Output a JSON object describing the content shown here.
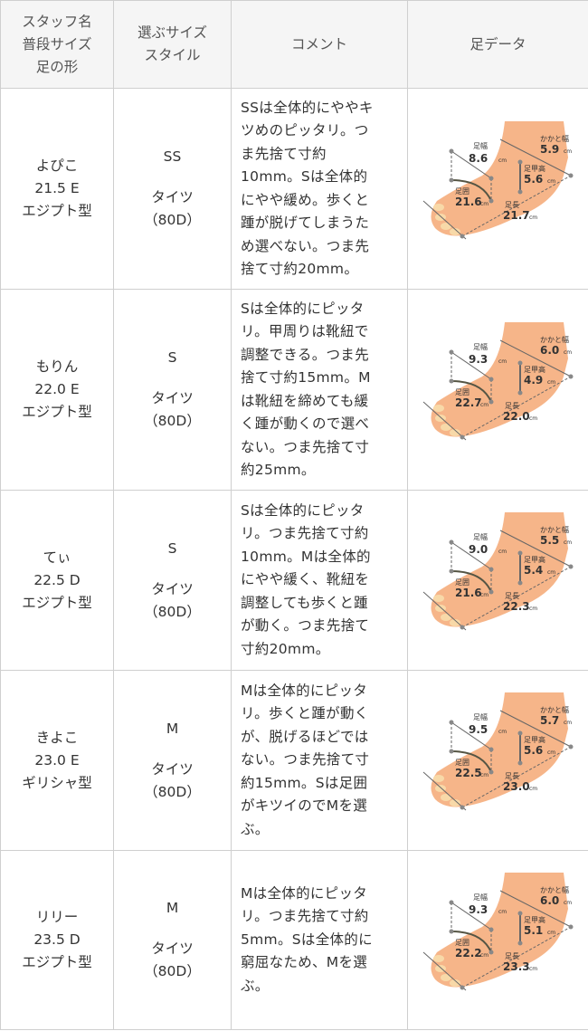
{
  "header": {
    "col1": [
      "スタッフ名",
      "普段サイズ",
      "足の形"
    ],
    "col2": [
      "選ぶサイズ",
      "スタイル"
    ],
    "col3": "コメント",
    "col4": "足データ"
  },
  "foot_labels": {
    "width": "足幅",
    "heel": "かかと幅",
    "instep": "足甲高",
    "girth": "足囲",
    "length": "足長",
    "unit": "cm"
  },
  "colors": {
    "foot": "#f6b589",
    "header_bg": "#f5f5f5",
    "border": "#cfcfcf"
  },
  "rows": [
    {
      "name": "よぴこ",
      "usual_size": "21.5 E",
      "shape": "エジプト型",
      "size": "SS",
      "style": "タイツ",
      "denier": "（80D）",
      "comment": [
        "SSは全体的にややキ",
        "ツめのピッタリ。つ",
        "ま先捨て寸約",
        "10mm。Sは全体的",
        "にやや緩め。歩くと",
        "踵が脱げてしまうた",
        "め選べない。つま先",
        "捨て寸約20mm。"
      ],
      "foot": {
        "width": "8.6",
        "heel": "5.9",
        "instep": "5.6",
        "girth": "21.6",
        "length": "21.7"
      }
    },
    {
      "name": "もりん",
      "usual_size": "22.0 E",
      "shape": "エジプト型",
      "size": "S",
      "style": "タイツ",
      "denier": "（80D）",
      "comment": [
        "Sは全体的にピッタ",
        "リ。甲周りは靴紐で",
        "調整できる。つま先",
        "捨て寸約15mm。M",
        "は靴紐を締めても緩",
        "く踵が動くので選べ",
        "ない。つま先捨て寸",
        "約25mm。"
      ],
      "foot": {
        "width": "9.3",
        "heel": "6.0",
        "instep": "4.9",
        "girth": "22.7",
        "length": "22.0"
      }
    },
    {
      "name": "てぃ",
      "usual_size": "22.5 D",
      "shape": "エジプト型",
      "size": "S",
      "style": "タイツ",
      "denier": "（80D）",
      "comment": [
        "Sは全体的にピッタ",
        "リ。つま先捨て寸約",
        "10mm。Mは全体的",
        "にやや緩く、靴紐を",
        "調整しても歩くと踵",
        "が動く。つま先捨て",
        "寸約20mm。"
      ],
      "foot": {
        "width": "9.0",
        "heel": "5.5",
        "instep": "5.4",
        "girth": "21.6",
        "length": "22.3"
      }
    },
    {
      "name": "きよこ",
      "usual_size": "23.0 E",
      "shape": "ギリシャ型",
      "size": "M",
      "style": "タイツ",
      "denier": "（80D）",
      "comment": [
        "Mは全体的にピッタ",
        "リ。歩くと踵が動く",
        "が、脱げるほどでは",
        "ない。つま先捨て寸",
        "約15mm。Sは足囲",
        "がキツイのでMを選",
        "ぶ。"
      ],
      "foot": {
        "width": "9.5",
        "heel": "5.7",
        "instep": "5.6",
        "girth": "22.5",
        "length": "23.0"
      }
    },
    {
      "name": "リリー",
      "usual_size": "23.5 D",
      "shape": "エジプト型",
      "size": "M",
      "style": "タイツ",
      "denier": "（80D）",
      "comment": [
        "Mは全体的にピッタ",
        "リ。つま先捨て寸約",
        "5mm。Sは全体的に",
        "窮屈なため、Mを選",
        "ぶ。"
      ],
      "foot": {
        "width": "9.3",
        "heel": "6.0",
        "instep": "5.1",
        "girth": "22.2",
        "length": "23.3"
      }
    }
  ]
}
